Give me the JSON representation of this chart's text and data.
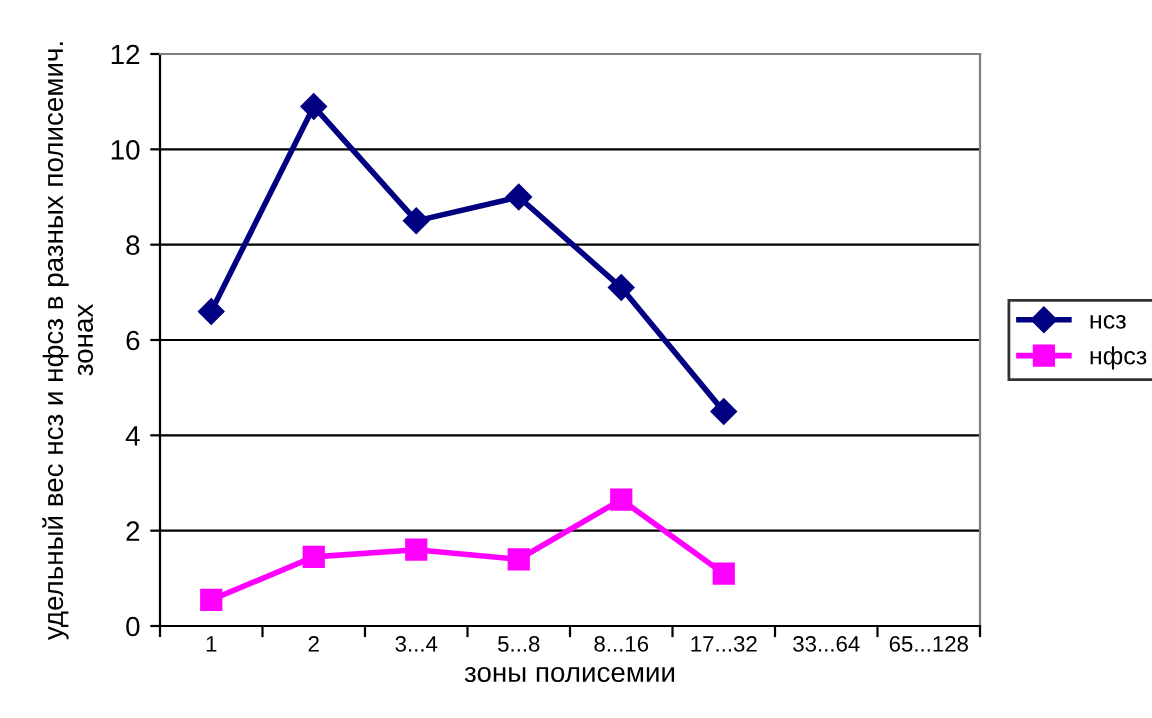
{
  "chart_data": {
    "type": "line",
    "xlabel": "зоны полисемии",
    "ylabel": "удельный вес нсз и нфсз в разных полисемич. зонах",
    "categories": [
      "1",
      "2",
      "3...4",
      "5...8",
      "8...16",
      "17...32",
      "33...64",
      "65...128"
    ],
    "series": [
      {
        "name": "нсз",
        "color": "#000080",
        "marker": "diamond",
        "values": [
          6.6,
          10.9,
          8.5,
          9.0,
          7.1,
          4.5,
          null,
          null
        ]
      },
      {
        "name": "нфсз",
        "color": "#ff00ff",
        "marker": "square",
        "values": [
          0.55,
          1.45,
          1.6,
          1.4,
          2.65,
          1.1,
          null,
          null
        ]
      }
    ],
    "ylim": [
      0,
      12
    ],
    "yticks": [
      0,
      2,
      4,
      6,
      8,
      10,
      12
    ],
    "grid": "y",
    "legend": "right",
    "line_style": "solid"
  }
}
